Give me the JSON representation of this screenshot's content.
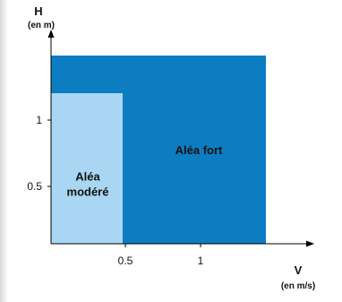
{
  "chart_data": {
    "type": "area",
    "title": "",
    "xlabel": "V",
    "xunit": "(en m/s)",
    "ylabel": "H",
    "yunit": "(en m)",
    "xlim": [
      0,
      1.6
    ],
    "ylim": [
      0,
      1.35
    ],
    "x_ticks": [
      {
        "value": 0.5,
        "label": "0.5"
      },
      {
        "value": 1,
        "label": "1"
      }
    ],
    "y_ticks": [
      {
        "value": 0.5,
        "label": "0.5"
      },
      {
        "value": 1,
        "label": "1"
      }
    ],
    "grid": false,
    "zones": [
      {
        "name": "Aléa fort",
        "label_lines": [
          "Aléa fort"
        ],
        "x": [
          0,
          1.5
        ],
        "y": [
          0,
          1.25
        ],
        "color": "#0d7dc2"
      },
      {
        "name": "Aléa modéré",
        "label_lines": [
          "Aléa",
          "modéré"
        ],
        "x": [
          0,
          0.5
        ],
        "y": [
          0,
          1
        ],
        "color": "#a9d6f2"
      }
    ]
  }
}
